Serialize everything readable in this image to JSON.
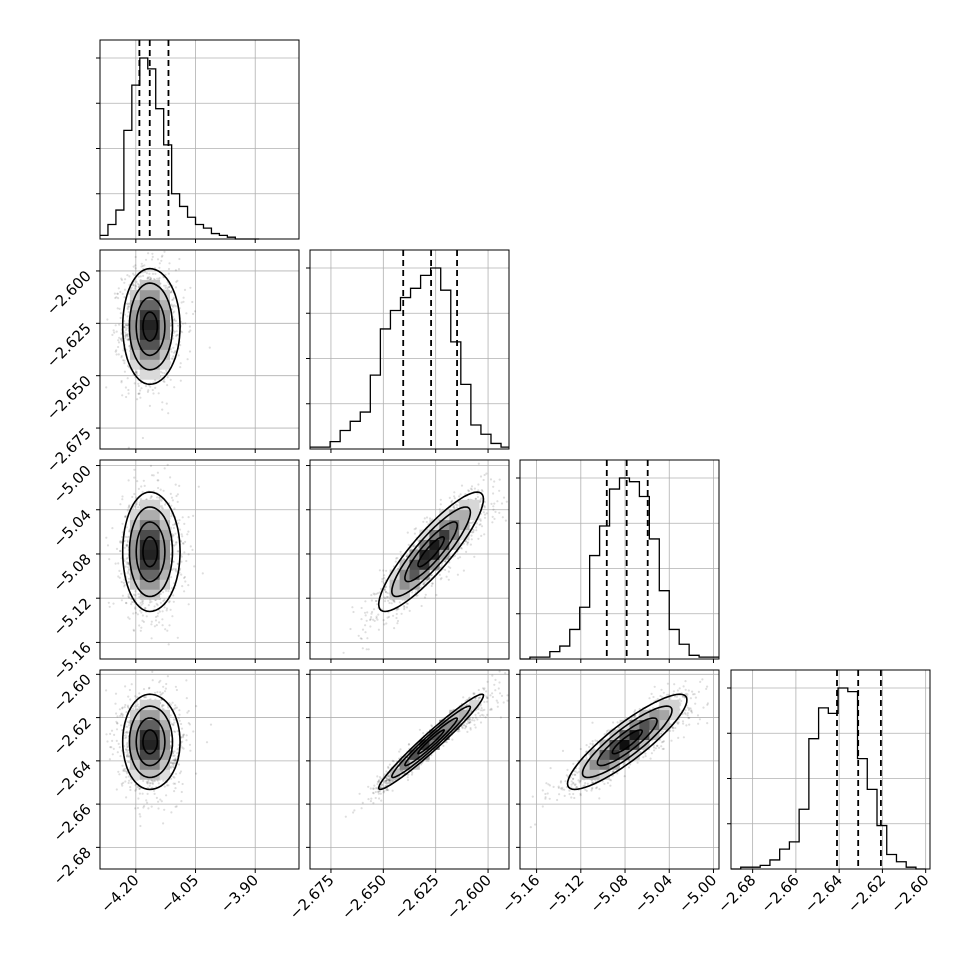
{
  "chart_data": {
    "type": "scatter",
    "kind": "corner-plot",
    "parameters": 4,
    "grid": true,
    "quantile_lines": "dashed",
    "axes": [
      {
        "range": [
          -4.29,
          -3.79
        ],
        "ticks": [
          -4.2,
          -4.05,
          -3.9
        ],
        "tick_labels": [
          "−4.20",
          "−4.05",
          "−3.90"
        ]
      },
      {
        "range": [
          -2.685,
          -2.59
        ],
        "ticks": [
          -2.675,
          -2.65,
          -2.625,
          -2.6
        ],
        "tick_labels": [
          "−2.675",
          "−2.650",
          "−2.625",
          "−2.600"
        ]
      },
      {
        "range": [
          -5.175,
          -4.995
        ],
        "ticks": [
          -5.16,
          -5.12,
          -5.08,
          -5.04,
          -5.0
        ],
        "tick_labels": [
          "−5.16",
          "−5.12",
          "−5.08",
          "−5.04",
          "−5.00"
        ]
      },
      {
        "range": [
          -2.69,
          -2.598
        ],
        "ticks": [
          -2.68,
          -2.66,
          -2.64,
          -2.62,
          -2.6
        ],
        "tick_labels": [
          "−2.68",
          "−2.66",
          "−2.64",
          "−2.62",
          "−2.60"
        ]
      }
    ],
    "marginals": [
      {
        "bins": [
          -4.29,
          -4.27,
          -4.25,
          -4.23,
          -4.21,
          -4.19,
          -4.17,
          -4.15,
          -4.13,
          -4.11,
          -4.09,
          -4.07,
          -4.05,
          -4.03,
          -4.01,
          -3.99,
          -3.97,
          -3.95,
          -3.93,
          -3.91,
          -3.89
        ],
        "counts": [
          2,
          8,
          16,
          60,
          85,
          100,
          94,
          72,
          52,
          25,
          18,
          12,
          8,
          6,
          3,
          2,
          1,
          0,
          0,
          0
        ],
        "quantiles": [
          -4.191,
          -4.165,
          -4.118
        ]
      },
      {
        "bins": [
          -2.685,
          -2.6802,
          -2.6754,
          -2.6706,
          -2.6658,
          -2.661,
          -2.6562,
          -2.6514,
          -2.6466,
          -2.6418,
          -2.637,
          -2.6322,
          -2.6274,
          -2.6226,
          -2.6178,
          -2.613,
          -2.6082,
          -2.6034,
          -2.5986,
          -2.5938,
          -2.59
        ],
        "counts": [
          1,
          1,
          4,
          10,
          15,
          20,
          40,
          65,
          75,
          82,
          87,
          94,
          98,
          86,
          58,
          35,
          13,
          8,
          3,
          1
        ],
        "quantiles": [
          -2.6405,
          -2.6272,
          -2.6148
        ]
      },
      {
        "bins": [
          -5.175,
          -5.166,
          -5.157,
          -5.148,
          -5.139,
          -5.13,
          -5.121,
          -5.112,
          -5.103,
          -5.094,
          -5.085,
          -5.076,
          -5.067,
          -5.058,
          -5.049,
          -5.04,
          -5.031,
          -5.022,
          -5.013,
          -5.004,
          -4.995
        ],
        "counts": [
          0,
          1,
          1,
          4,
          7,
          16,
          28,
          56,
          72,
          92,
          98,
          96,
          88,
          65,
          37,
          16,
          8,
          2,
          1,
          1
        ],
        "quantiles": [
          -5.0965,
          -5.0785,
          -5.0595
        ]
      },
      {
        "bins": [
          -2.69,
          -2.6855,
          -2.681,
          -2.6765,
          -2.672,
          -2.6675,
          -2.663,
          -2.6585,
          -2.654,
          -2.6495,
          -2.645,
          -2.6405,
          -2.636,
          -2.6315,
          -2.627,
          -2.6225,
          -2.618,
          -2.6135,
          -2.609,
          -2.6045,
          -2.6
        ],
        "counts": [
          0,
          1,
          1,
          2,
          5,
          11,
          15,
          33,
          72,
          89,
          86,
          100,
          98,
          61,
          44,
          24,
          8,
          4,
          1,
          0
        ],
        "quantiles": [
          -2.641,
          -2.6312,
          -2.6207
        ]
      }
    ],
    "joint": [
      {
        "row": 1,
        "col": 0,
        "center": [
          -4.165,
          -2.6265
        ],
        "sigma": [
          0.034,
          0.0138
        ],
        "rho": 0.0
      },
      {
        "row": 2,
        "col": 0,
        "center": [
          -4.165,
          -5.078
        ],
        "sigma": [
          0.034,
          0.027
        ],
        "rho": 0.0
      },
      {
        "row": 2,
        "col": 1,
        "center": [
          -2.6272,
          -5.078
        ],
        "sigma": [
          0.0125,
          0.027
        ],
        "rho": 0.88
      },
      {
        "row": 3,
        "col": 0,
        "center": [
          -4.165,
          -2.6312
        ],
        "sigma": [
          0.034,
          0.011
        ],
        "rho": 0.0
      },
      {
        "row": 3,
        "col": 1,
        "center": [
          -2.6272,
          -2.6312
        ],
        "sigma": [
          0.0125,
          0.011
        ],
        "rho": 0.97
      },
      {
        "row": 3,
        "col": 2,
        "center": [
          -5.078,
          -2.6312
        ],
        "sigma": [
          0.027,
          0.011
        ],
        "rho": 0.88
      }
    ],
    "contour_levels_sigma": [
      0.5,
      1.0,
      1.5,
      2.0
    ]
  }
}
